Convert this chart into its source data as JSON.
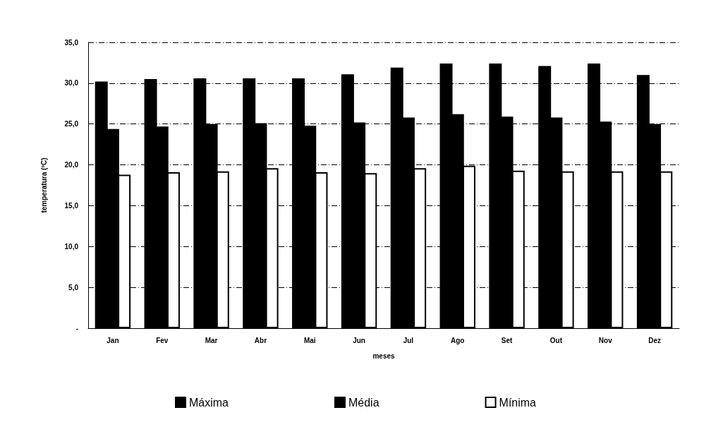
{
  "chart_data": {
    "type": "bar",
    "xlabel": "meses",
    "ylabel": "temperatura (ºC)",
    "categories": [
      "Jan",
      "Fev",
      "Mar",
      "Abr",
      "Mai",
      "Jun",
      "Jul",
      "Ago",
      "Set",
      "Out",
      "Nov",
      "Dez"
    ],
    "series": [
      {
        "name": "Máxima",
        "color": "#000000",
        "values": [
          30.2,
          30.5,
          30.6,
          30.6,
          30.6,
          31.1,
          31.9,
          32.4,
          32.4,
          32.1,
          32.4,
          31.0
        ]
      },
      {
        "name": "Média",
        "color": "#000000",
        "values": [
          24.4,
          24.7,
          25.0,
          25.1,
          24.8,
          25.2,
          25.8,
          26.2,
          25.9,
          25.8,
          25.3,
          25.0
        ]
      },
      {
        "name": "Mínima",
        "color": "#ffffff",
        "values": [
          18.8,
          19.1,
          19.2,
          19.6,
          19.1,
          19.0,
          19.6,
          19.9,
          19.3,
          19.2,
          19.2,
          19.2
        ]
      }
    ],
    "ylim": [
      0,
      35
    ],
    "yticks": [
      {
        "value": 0,
        "label": "-"
      },
      {
        "value": 5,
        "label": "5,0"
      },
      {
        "value": 10,
        "label": "10,0"
      },
      {
        "value": 15,
        "label": "15,0"
      },
      {
        "value": 20,
        "label": "20,0"
      },
      {
        "value": 25,
        "label": "25,0"
      },
      {
        "value": 30,
        "label": "30,0"
      },
      {
        "value": 35,
        "label": "35,0"
      }
    ],
    "grid": "y",
    "legend": "bottom"
  }
}
